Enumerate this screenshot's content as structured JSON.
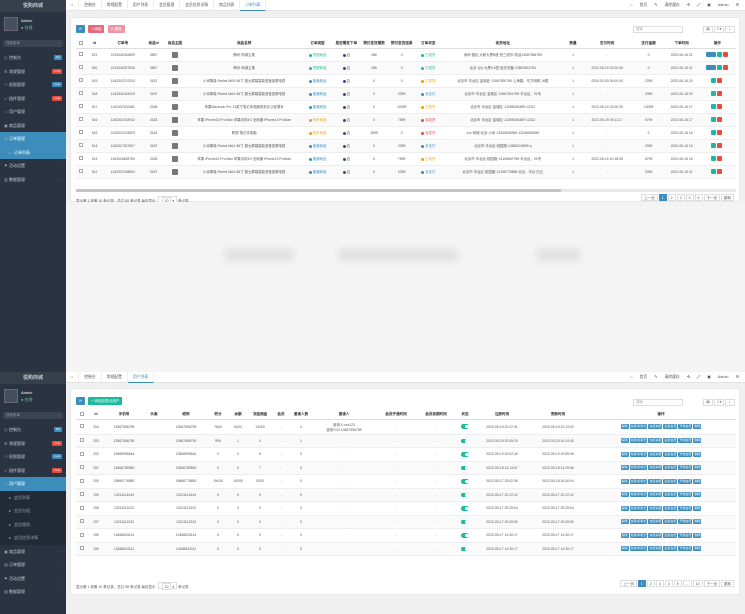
{
  "app": {
    "brand": "悦购商城",
    "admin_name": "Admin",
    "admin_status": "在线",
    "search_placeholder": "搜索菜单"
  },
  "colors": {
    "sidebar_bg": "#2a3341",
    "accent": "#3c8dbc",
    "green": "#18bc9c",
    "red": "#e74c3c",
    "orange": "#f39c12"
  },
  "panel1": {
    "sidebar": [
      {
        "label": "控制台",
        "icon": "dashboard-icon",
        "badge": "hot",
        "badge_color": "#3c8dbc"
      },
      {
        "label": "常规管理",
        "icon": "gear-icon",
        "badge": "new",
        "badge_color": "#e74c3c"
      },
      {
        "label": "权限管理",
        "icon": "users-icon",
        "badge": "new",
        "badge_color": "#3c8dbc"
      },
      {
        "label": "插件管理",
        "icon": "rocket-icon",
        "badge": "new",
        "badge_color": "#e74c3c"
      },
      {
        "label": "用户管理",
        "icon": "user-icon"
      },
      {
        "label": "商品管理",
        "icon": "bag-icon"
      },
      {
        "label": "订单管理",
        "icon": "file-icon",
        "active": true
      },
      {
        "label": "订单列表",
        "icon": "list-icon",
        "sub": true,
        "active": true
      },
      {
        "label": "活动设置",
        "icon": "flag-icon"
      },
      {
        "label": "数据管理",
        "icon": "chart-icon"
      }
    ],
    "tabs": [
      "控制台",
      "常规配置",
      "用户列表",
      "会员管理",
      "会员信息详情",
      "商品列表",
      "订单列表"
    ],
    "topbar": [
      "首页",
      "清除缓存",
      "Admin"
    ],
    "toolbar": {
      "refresh": "⟳",
      "add": "添加",
      "delete": "删除"
    },
    "search_placeholder": "搜索",
    "columns": [
      "",
      "Id",
      "订单号",
      "商品Id",
      "商品主图",
      "商品名称",
      "订单类型",
      "是否需发下单",
      "预付发货期限",
      "预付发货结果",
      "订单状态",
      "收货地址",
      "数量",
      "支付时间",
      "支付金额",
      "下单时间",
      "操作"
    ],
    "rows": [
      {
        "id": "521",
        "no": "2115342026809",
        "pid": "3857",
        "name": "腾讯·商城主推",
        "type": "拼团商品",
        "type_color": "#18bc9c",
        "need": "否",
        "days": "286",
        "res": "0",
        "status": "已发货",
        "status_color": "#18bc9c",
        "addr": "深圳·德区·大新大厦B座·张三收件·电话13567556789",
        "qty": "1",
        "paytime": "-",
        "amount": "0",
        "time": "2022-05-16 21",
        "actions": 3
      },
      {
        "id": "520",
        "no": "2115342027830",
        "pid": "3857",
        "name": "腾讯·商城主推",
        "type": "拼团商品",
        "type_color": "#18bc9c",
        "need": "否",
        "days": "286",
        "res": "0",
        "status": "已发货",
        "status_color": "#18bc9c",
        "addr": "北京·QQ·大厦6-5层·医疗设备·13567893754",
        "qty": "1",
        "paytime": "2022-05-19 22:00:36",
        "amount": "0",
        "time": "2022-05-16 21",
        "actions": 3
      },
      {
        "id": "519",
        "no": "1163342270203",
        "pid": "3187",
        "name": "小米降噪 Redmi MAX 86寸 超大屏幕智能语音投屏电视",
        "type": "普通商品",
        "type_color": "#3c8dbc",
        "need": "否",
        "days": "0",
        "res": "0",
        "status": "已发货",
        "status_color": "#f39c12",
        "addr": "北京市·丰台区·金城处·13567890789·上海路，东方明珠 16楼",
        "qty": "1",
        "paytime": "0000-00-00 00:00:00",
        "amount": "2399",
        "time": "2022-05-16 20",
        "actions": 2
      },
      {
        "id": "518",
        "no": "1163341163419",
        "pid": "3187",
        "name": "小米降噪 Redmi MAX 86寸 超大屏幕智能语音投屏电视",
        "type": "普通商品",
        "type_color": "#3c8dbc",
        "need": "否",
        "days": "0",
        "res": "2399",
        "status": "未支付",
        "status_color": "#3c8dbc",
        "addr": "北京市·丰台区·金城区·13567891789·丰台区，91号",
        "qty": "1",
        "paytime": "-",
        "amount": "2399",
        "time": "2022-05-16 20",
        "actions": 2
      },
      {
        "id": "517",
        "no": "1163337402481",
        "pid": "3186",
        "name": "苹果Macbook Pro 13英寸笔记本电脑商务办公轻薄本",
        "type": "普通商品",
        "type_color": "#3c8dbc",
        "need": "否",
        "days": "0",
        "res": "10099",
        "status": "已发货",
        "status_color": "#f39c12",
        "addr": "北京市·丰台区·金城区·13255006389·12312",
        "qty": "1",
        "paytime": "2022-05-19 23:00:30",
        "amount": "10099",
        "time": "2022-05-16 17",
        "actions": 2
      },
      {
        "id": "516",
        "no": "1163337402942",
        "pid": "3183",
        "name": "苹果 iPhone13 Pro Max 苹果手机5G 全网通 iPhone13 ProMax",
        "type": "秒杀商品",
        "type_color": "#f39c12",
        "need": "否",
        "days": "0",
        "res": "7899",
        "status": "待发货",
        "status_color": "#e74c3c",
        "addr": "北京市·丰台区·金城区·13255006389·12312",
        "qty": "1",
        "paytime": "2022-05-19 05:11:17",
        "amount": "6799",
        "time": "2022-05-16 17",
        "actions": 2
      },
      {
        "id": "515",
        "no": "2115337433503",
        "pid": "3181",
        "name": "联想·笔记本电脑",
        "type": "秒杀商品",
        "type_color": "#f39c12",
        "need": "否",
        "days": "1899",
        "res": "0",
        "status": "待发货",
        "status_color": "#e74c3c",
        "addr": "xxx·商城·北京·小米-13265006389·13265006389",
        "qty": "1",
        "paytime": "-",
        "amount": "0",
        "time": "2022-05-16 16",
        "actions": 2
      },
      {
        "id": "514",
        "no": "1163317307807",
        "pid": "3187",
        "name": "小米降噪 Redmi MAX 86寸 超大屏幕智能语音投屏电视",
        "type": "普通商品",
        "type_color": "#3c8dbc",
        "need": "否",
        "days": "0",
        "res": "2399",
        "status": "未支付",
        "status_color": "#3c8dbc",
        "addr": "北京市·丰台区·桃园路·13655116995·q",
        "qty": "1",
        "paytime": "-",
        "amount": "2399",
        "time": "2022-05-16 16",
        "actions": 2
      },
      {
        "id": "513",
        "no": "1163316628750",
        "pid": "3183",
        "name": "苹果 iPhone13 Pro Max 苹果手机5G 全网通 iPhone13 ProMax",
        "type": "普通商品",
        "type_color": "#3c8dbc",
        "need": "否",
        "days": "0",
        "res": "7899",
        "status": "已发货",
        "status_color": "#f39c12",
        "addr": "北京市·丰台区·桃园路·13155667789·丰台区，91号",
        "qty": "1",
        "paytime": "2022-05-16 10:18:08",
        "amount": "6799",
        "time": "2022-05-16 16",
        "actions": 2
      },
      {
        "id": "512",
        "no": "1163307008694",
        "pid": "3187",
        "name": "小米降噪 Redmi MAX 86寸 超大屏幕智能语音投屏电视",
        "type": "普通商品",
        "type_color": "#3c8dbc",
        "need": "否",
        "days": "0",
        "res": "2399",
        "status": "未支付",
        "status_color": "#3c8dbc",
        "addr": "北京市·丰台区·桃园路·13156779888·北京，丰台·白云",
        "qty": "1",
        "paytime": "-",
        "amount": "2399",
        "time": "2022-05-16 21",
        "actions": 2
      }
    ],
    "footer": "显示第 1 到第 10 条记录，总共 50 条记录 每页显示",
    "footer_per": "10",
    "footer_tail": "条记录",
    "pager": [
      "上一页",
      "1",
      "2",
      "3",
      "4",
      "5",
      "下一页"
    ],
    "pager_current": "1",
    "goto": "跳转"
  },
  "panel2": {
    "sidebar": [
      {
        "label": "控制台",
        "icon": "dashboard-icon",
        "badge": "hot",
        "badge_color": "#3c8dbc"
      },
      {
        "label": "常规管理",
        "icon": "gear-icon",
        "badge": "new",
        "badge_color": "#e74c3c"
      },
      {
        "label": "权限管理",
        "icon": "users-icon",
        "badge": "new",
        "badge_color": "#3c8dbc"
      },
      {
        "label": "插件管理",
        "icon": "rocket-icon",
        "badge": "new",
        "badge_color": "#e74c3c"
      },
      {
        "label": "用户管理",
        "icon": "user-icon",
        "active": true
      },
      {
        "label": "会员列表",
        "icon": "list-icon",
        "sub": true
      },
      {
        "label": "会员分组",
        "icon": "list-icon",
        "sub": true
      },
      {
        "label": "会员规则",
        "icon": "list-icon",
        "sub": true
      },
      {
        "label": "会员信息详情",
        "icon": "list-icon",
        "sub": true
      },
      {
        "label": "商品管理",
        "icon": "bag-icon"
      },
      {
        "label": "订单管理",
        "icon": "file-icon"
      },
      {
        "label": "活动设置",
        "icon": "flag-icon"
      },
      {
        "label": "数据管理",
        "icon": "chart-icon"
      }
    ],
    "tabs": [
      "控制台",
      "常规配置",
      "用户列表"
    ],
    "topbar": [
      "首页",
      "清除缓存",
      "Admin"
    ],
    "toolbar": {
      "refresh": "⟳",
      "add": "添加自提点用户"
    },
    "search_placeholder": "搜索",
    "columns": [
      "",
      "Id",
      "手机号",
      "头像",
      "昵称",
      "积分",
      "余额",
      "冻结佣金",
      "会员",
      "邀请人数",
      "邀请人",
      "会员开通时间",
      "会员到期时间",
      "状态",
      "注册时间",
      "更新时间",
      "操作"
    ],
    "rows": [
      {
        "id": "204",
        "phone": "13567556789",
        "nick": "13567556789",
        "points": "7844",
        "balance": "6423",
        "frozen": "13300",
        "member": "-",
        "invites": "4",
        "inviter": "邀请人:zzz123",
        "inviter2": "邀请人ID:13567556789",
        "open": "-",
        "expire": "-",
        "reg": "2022-05-19 22:02:31",
        "upd": "2022-05-19 22:13:02"
      },
      {
        "id": "203",
        "phone": "13567556790",
        "nick": "13567556790",
        "points": "999",
        "balance": "1",
        "frozen": "4",
        "member": "-",
        "invites": "1",
        "inviter": "-",
        "inviter2": "",
        "open": "-",
        "expire": "-",
        "reg": "2022-05-19 20:05:20",
        "upd": "2022-05-20 10:24:40"
      },
      {
        "id": "202",
        "phone": "13568995644",
        "nick": "13568995644",
        "points": "0",
        "balance": "0",
        "frozen": "6",
        "member": "-",
        "invites": "0",
        "inviter": "-",
        "inviter2": "",
        "open": "-",
        "expire": "-",
        "reg": "2022-05-19 20:02:26",
        "upd": "2022-05-19 20:59:06"
      },
      {
        "id": "201",
        "phone": "13566789560",
        "nick": "13566789560",
        "points": "0",
        "balance": "0",
        "frozen": "7",
        "member": "-",
        "invites": "0",
        "inviter": "-",
        "inviter2": "",
        "open": "-",
        "expire": "-",
        "reg": "2022-05-18 14:13:57",
        "upd": "2022-05-18 14:29:56"
      },
      {
        "id": "200",
        "phone": "15866776850",
        "nick": "15866776850",
        "points": "19434",
        "balance": "10000",
        "frozen": "5300",
        "member": "-",
        "invites": "0",
        "inviter": "-",
        "inviter2": "",
        "open": "-",
        "expire": "-",
        "reg": "2022-05-17 23:42:36",
        "upd": "2022-05-18 16:30:04"
      },
      {
        "id": "199",
        "phone": "13211114444",
        "nick": "13211114444",
        "points": "0",
        "balance": "0",
        "frozen": "0",
        "member": "-",
        "invites": "0",
        "inviter": "-",
        "inviter2": "",
        "open": "-",
        "expire": "-",
        "reg": "2022-05-17 20:22:12",
        "upd": "2022-05-17 20:22:12"
      },
      {
        "id": "198",
        "phone": "13211112222",
        "nick": "13211112222",
        "points": "0",
        "balance": "0",
        "frozen": "0",
        "member": "-",
        "invites": "0",
        "inviter": "-",
        "inviter2": "",
        "open": "-",
        "expire": "-",
        "reg": "2022-05-17 20:25:54",
        "upd": "2022-05-17 20:25:54"
      },
      {
        "id": "197",
        "phone": "13211112233",
        "nick": "13211112233",
        "points": "0",
        "balance": "0",
        "frozen": "0",
        "member": "-",
        "invites": "0",
        "inviter": "-",
        "inviter2": "",
        "open": "-",
        "expire": "-",
        "reg": "2022-05-17 20:25:52",
        "upd": "2022-05-17 20:25:52"
      },
      {
        "id": "196",
        "phone": "13456633114",
        "nick": "13456633114",
        "points": "0",
        "balance": "0",
        "frozen": "0",
        "member": "-",
        "invites": "0",
        "inviter": "-",
        "inviter2": "",
        "open": "-",
        "expire": "-",
        "reg": "2022-05-17 14:30:17",
        "upd": "2022-05-17 14:30:17"
      },
      {
        "id": "195",
        "phone": "13456633111",
        "nick": "13456633111",
        "points": "0",
        "balance": "0",
        "frozen": "0",
        "member": "-",
        "invites": "0",
        "inviter": "-",
        "inviter2": "",
        "open": "-",
        "expire": "-",
        "reg": "2022-05-17 14:30:17",
        "upd": "2022-05-17 14:30:17"
      }
    ],
    "actions": [
      "编辑",
      "充值/扣积分",
      "充值余额",
      "设置会员",
      "开通会员",
      "删除"
    ],
    "footer": "显示第 1 到第 10 条记录，总共 98 条记录 每页显示",
    "footer_per": "10",
    "footer_tail": "条记录",
    "pager": [
      "上一页",
      "1",
      "2",
      "3",
      "4",
      "5",
      "...",
      "10",
      "下一页"
    ],
    "pager_current": "1",
    "goto": "跳转"
  }
}
